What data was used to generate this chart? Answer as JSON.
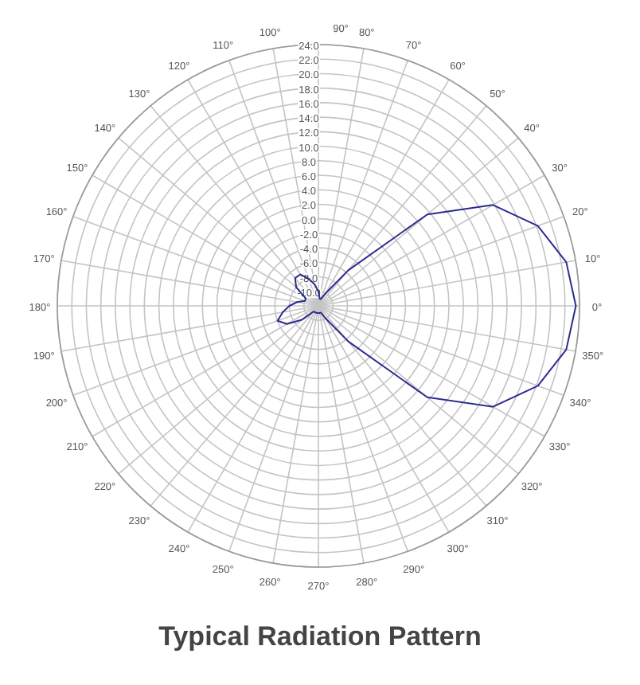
{
  "chart_data": {
    "type": "radar",
    "title": "Typical Radiation Pattern",
    "categories": [
      "90°",
      "80°",
      "70°",
      "60°",
      "50°",
      "40°",
      "30°",
      "20°",
      "10°",
      "0°",
      "350°",
      "340°",
      "330°",
      "320°",
      "310°",
      "300°",
      "290°",
      "280°",
      "270°",
      "260°",
      "250°",
      "240°",
      "230°",
      "220°",
      "210°",
      "200°",
      "190°",
      "180°",
      "170°",
      "160°",
      "150°",
      "140°",
      "130°",
      "120°",
      "110°",
      "100°"
    ],
    "series": [
      {
        "color": "#2b2b8f",
        "values": [
          -10,
          -11,
          -11,
          -10,
          -5.6,
          7.6,
          15.8,
          20.2,
          22.7,
          23.5,
          22.7,
          20.2,
          15.8,
          7.6,
          -5.6,
          -10,
          -11,
          -11,
          -11,
          -11,
          -11,
          -11,
          -11,
          -9,
          -7,
          -6,
          -7,
          -8,
          -9,
          -10,
          -10,
          -8,
          -7,
          -7,
          -8,
          -9
        ]
      }
    ],
    "ylim": [
      -12,
      24
    ],
    "yticks": [
      {
        "value": 24,
        "label": "24.0"
      },
      {
        "value": 22,
        "label": "22.0"
      },
      {
        "value": 20,
        "label": "20.0"
      },
      {
        "value": 18,
        "label": "18.0"
      },
      {
        "value": 16,
        "label": "16.0"
      },
      {
        "value": 14,
        "label": "14.0"
      },
      {
        "value": 12,
        "label": "12.0"
      },
      {
        "value": 10,
        "label": "10.0"
      },
      {
        "value": 8,
        "label": "8.0"
      },
      {
        "value": 6,
        "label": "6.0"
      },
      {
        "value": 4,
        "label": "4.0"
      },
      {
        "value": 2,
        "label": "2.0"
      },
      {
        "value": 0,
        "label": "0.0"
      },
      {
        "value": -2,
        "label": "-2.0"
      },
      {
        "value": -4,
        "label": "-4.0"
      },
      {
        "value": -6,
        "label": "-6.0"
      },
      {
        "value": -8,
        "label": "-8.0"
      },
      {
        "value": -10,
        "label": "-10.0"
      }
    ],
    "grid": true
  }
}
